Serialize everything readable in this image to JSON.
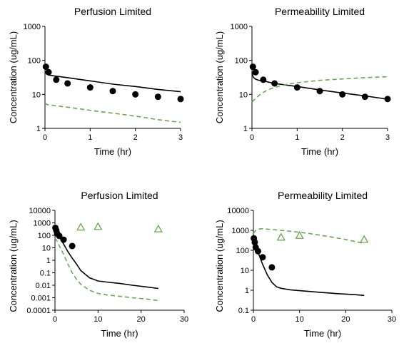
{
  "colors": {
    "model_primary": "#000000",
    "model_secondary": "#6aa84f",
    "observed_marker": "#000000",
    "observed_triangle": "#6aa84f"
  },
  "chart_data": [
    {
      "type": "line",
      "title": "Perfusion Limited",
      "xlabel": "Time (hr)",
      "ylabel": "Concentration (ug/mL)",
      "xlim": [
        0,
        3
      ],
      "ylim": [
        1,
        1000
      ],
      "yscale": "log",
      "x_ticks": [
        "0",
        "1",
        "2",
        "3"
      ],
      "y_ticks": [
        "1",
        "10",
        "100",
        "1000"
      ],
      "grid": false,
      "legend": "none",
      "series": [
        {
          "style": "solid-line",
          "x": [
            0,
            0.03,
            0.08,
            0.2,
            0.5,
            1,
            1.5,
            2,
            2.5,
            3
          ],
          "y": [
            48,
            40,
            37,
            35,
            31,
            25,
            20,
            17,
            14,
            12
          ]
        },
        {
          "style": "dashed-line",
          "x": [
            0,
            0.05,
            0.2,
            0.5,
            1,
            1.5,
            2,
            2.5,
            3
          ],
          "y": [
            5.5,
            5,
            4.7,
            4.2,
            3.4,
            2.8,
            2.3,
            1.8,
            1.5
          ]
        },
        {
          "style": "filled-circle",
          "x": [
            0.02,
            0.08,
            0.25,
            0.5,
            1,
            1.5,
            2,
            2.5,
            3
          ],
          "y": [
            65,
            45,
            27,
            21,
            16,
            12.5,
            10,
            8.5,
            7.3
          ]
        }
      ]
    },
    {
      "type": "line",
      "title": "Permeability Limited",
      "xlabel": "Time (hr)",
      "ylabel": "Concentration (ug/mL)",
      "xlim": [
        0,
        3
      ],
      "ylim": [
        1,
        1000
      ],
      "yscale": "log",
      "x_ticks": [
        "0",
        "1",
        "2",
        "3"
      ],
      "y_ticks": [
        "1",
        "10",
        "100",
        "1000"
      ],
      "grid": false,
      "legend": "none",
      "series": [
        {
          "style": "solid-line",
          "x": [
            0,
            0.03,
            0.08,
            0.15,
            0.3,
            0.5,
            1,
            1.5,
            2,
            2.5,
            3
          ],
          "y": [
            45,
            32,
            28,
            26,
            24,
            21,
            17,
            13.5,
            11,
            9,
            7.2
          ]
        },
        {
          "style": "dashed-line",
          "x": [
            0,
            0.1,
            0.2,
            0.35,
            0.5,
            0.75,
            1,
            1.5,
            2,
            2.5,
            3
          ],
          "y": [
            6,
            8,
            10.5,
            13.5,
            16,
            19.5,
            22,
            26,
            28.5,
            31,
            33
          ]
        },
        {
          "style": "filled-circle",
          "x": [
            0.02,
            0.08,
            0.25,
            0.5,
            1,
            1.5,
            2,
            2.5,
            3
          ],
          "y": [
            65,
            45,
            27,
            21,
            16,
            12.5,
            10,
            8.5,
            7.3
          ]
        }
      ]
    },
    {
      "type": "line",
      "title": "Perfusion Limited",
      "xlabel": "Time (hr)",
      "ylabel": "Concentration (ug/mL)",
      "xlim": [
        0,
        30
      ],
      "ylim": [
        0.0001,
        10000
      ],
      "yscale": "log",
      "x_ticks": [
        "0",
        "10",
        "20",
        "30"
      ],
      "y_ticks": [
        "0.0001",
        "0.001",
        "0.01",
        "0.1",
        "1",
        "10",
        "100",
        "1000",
        "10000"
      ],
      "grid": false,
      "legend": "none",
      "series": [
        {
          "style": "solid-line",
          "x": [
            0,
            0.5,
            1,
            2,
            3,
            4,
            5,
            6,
            8,
            10,
            12,
            15,
            18,
            21,
            24
          ],
          "y": [
            200,
            130,
            75,
            20,
            5,
            1.5,
            0.5,
            0.15,
            0.04,
            0.022,
            0.018,
            0.014,
            0.01,
            0.0075,
            0.0055
          ]
        },
        {
          "style": "dashed-line",
          "x": [
            0,
            0.5,
            1,
            2,
            3,
            4,
            5,
            6,
            8,
            10,
            12,
            15,
            18,
            21,
            24
          ],
          "y": [
            60,
            35,
            15,
            3,
            0.5,
            0.1,
            0.03,
            0.012,
            0.004,
            0.0022,
            0.0017,
            0.0013,
            0.001,
            0.0008,
            0.0006
          ]
        },
        {
          "style": "filled-circle",
          "x": [
            0.1,
            0.3,
            0.5,
            1,
            2,
            4
          ],
          "y": [
            400,
            250,
            140,
            90,
            45,
            14
          ]
        },
        {
          "style": "open-triangle",
          "x": [
            6,
            10,
            24
          ],
          "y": [
            450,
            500,
            320
          ]
        }
      ]
    },
    {
      "type": "line",
      "title": "Permeability Limited",
      "xlabel": "Time (hr)",
      "ylabel": "Concentration (ug/mL)",
      "xlim": [
        0,
        30
      ],
      "ylim": [
        0.1,
        10000
      ],
      "yscale": "log",
      "x_ticks": [
        "0",
        "10",
        "20",
        "30"
      ],
      "y_ticks": [
        "0.1",
        "1",
        "10",
        "100",
        "1000",
        "10000"
      ],
      "grid": false,
      "legend": "none",
      "series": [
        {
          "style": "solid-line",
          "x": [
            0,
            0.5,
            1,
            2,
            3,
            4,
            5,
            6,
            8,
            10,
            14,
            18,
            22,
            24
          ],
          "y": [
            250,
            150,
            80,
            20,
            6,
            2.5,
            1.5,
            1.25,
            1.05,
            0.95,
            0.8,
            0.68,
            0.6,
            0.55
          ]
        },
        {
          "style": "dashed-line",
          "x": [
            0,
            0.5,
            1,
            2,
            3,
            5,
            8,
            12,
            16,
            20,
            24
          ],
          "y": [
            700,
            1000,
            1150,
            1200,
            1150,
            1050,
            900,
            700,
            500,
            350,
            220
          ]
        },
        {
          "style": "filled-circle",
          "x": [
            0.1,
            0.3,
            0.5,
            1,
            2,
            4
          ],
          "y": [
            400,
            250,
            140,
            90,
            45,
            14
          ]
        },
        {
          "style": "open-triangle",
          "x": [
            6,
            10,
            24
          ],
          "y": [
            450,
            550,
            350
          ]
        }
      ]
    }
  ]
}
